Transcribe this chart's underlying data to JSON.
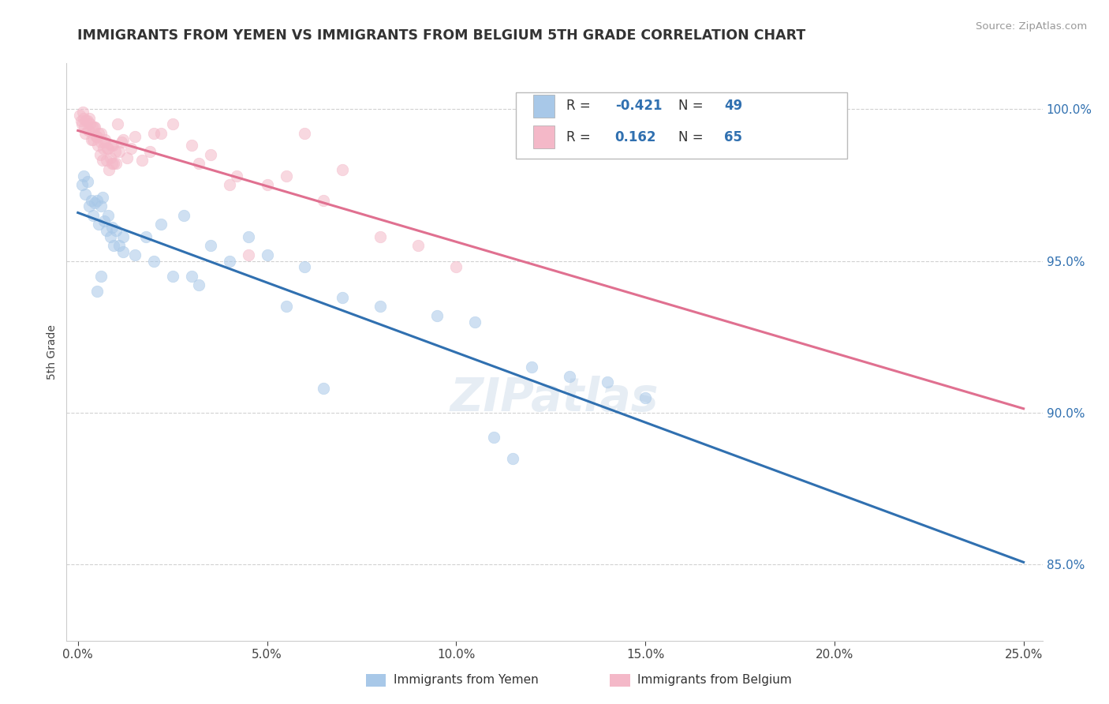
{
  "title": "IMMIGRANTS FROM YEMEN VS IMMIGRANTS FROM BELGIUM 5TH GRADE CORRELATION CHART",
  "source": "Source: ZipAtlas.com",
  "xlabel_vals": [
    0.0,
    5.0,
    10.0,
    15.0,
    20.0,
    25.0
  ],
  "yticks": [
    85.0,
    90.0,
    95.0,
    100.0
  ],
  "ylim": [
    82.5,
    101.5
  ],
  "xlim": [
    -0.3,
    25.5
  ],
  "ylabel_label": "5th Grade",
  "legend_blue_R": "-0.421",
  "legend_blue_N": "49",
  "legend_pink_R": "0.162",
  "legend_pink_N": "65",
  "blue_color": "#a8c8e8",
  "pink_color": "#f4b8c8",
  "blue_line_color": "#3070b0",
  "pink_line_color": "#e07090",
  "yemen_x": [
    0.1,
    0.15,
    0.2,
    0.25,
    0.3,
    0.35,
    0.4,
    0.45,
    0.5,
    0.55,
    0.6,
    0.65,
    0.7,
    0.75,
    0.8,
    0.85,
    0.9,
    0.95,
    1.0,
    1.1,
    1.2,
    1.5,
    1.8,
    2.0,
    2.2,
    2.5,
    3.0,
    3.5,
    4.0,
    4.5,
    5.0,
    5.5,
    6.0,
    6.5,
    7.0,
    8.0,
    9.5,
    10.5,
    11.5,
    12.0,
    13.0,
    14.0,
    15.0,
    0.5,
    0.6,
    1.2,
    2.8,
    3.2,
    11.0
  ],
  "yemen_y": [
    97.5,
    97.8,
    97.2,
    97.6,
    96.8,
    97.0,
    96.5,
    96.9,
    97.0,
    96.2,
    96.8,
    97.1,
    96.3,
    96.0,
    96.5,
    95.8,
    96.1,
    95.5,
    96.0,
    95.5,
    95.8,
    95.2,
    95.8,
    95.0,
    96.2,
    94.5,
    94.5,
    95.5,
    95.0,
    95.8,
    95.2,
    93.5,
    94.8,
    90.8,
    93.8,
    93.5,
    93.2,
    93.0,
    88.5,
    91.5,
    91.2,
    91.0,
    90.5,
    94.0,
    94.5,
    95.3,
    96.5,
    94.2,
    89.2
  ],
  "belgium_x": [
    0.05,
    0.08,
    0.1,
    0.12,
    0.15,
    0.18,
    0.2,
    0.22,
    0.25,
    0.28,
    0.3,
    0.32,
    0.35,
    0.38,
    0.4,
    0.42,
    0.45,
    0.48,
    0.5,
    0.52,
    0.55,
    0.58,
    0.6,
    0.62,
    0.65,
    0.68,
    0.7,
    0.72,
    0.75,
    0.78,
    0.8,
    0.82,
    0.85,
    0.88,
    0.9,
    0.92,
    0.95,
    0.98,
    1.0,
    1.05,
    1.1,
    1.15,
    1.2,
    1.3,
    1.4,
    1.5,
    1.7,
    1.9,
    2.0,
    2.2,
    2.5,
    3.0,
    3.5,
    4.0,
    4.5,
    5.5,
    6.0,
    7.0,
    3.2,
    4.2,
    5.0,
    6.5,
    8.0,
    9.0,
    10.0
  ],
  "belgium_y": [
    99.8,
    99.6,
    99.5,
    99.9,
    99.7,
    99.4,
    99.2,
    99.6,
    99.6,
    99.3,
    99.7,
    99.5,
    99.0,
    99.4,
    99.0,
    99.4,
    99.4,
    99.1,
    99.1,
    98.8,
    99.2,
    98.5,
    99.2,
    98.9,
    98.3,
    98.7,
    98.9,
    99.0,
    98.3,
    98.7,
    98.7,
    98.0,
    98.4,
    98.8,
    98.2,
    98.8,
    98.2,
    98.6,
    98.2,
    99.5,
    98.6,
    98.9,
    99.0,
    98.4,
    98.7,
    99.1,
    98.3,
    98.6,
    99.2,
    99.2,
    99.5,
    98.8,
    98.5,
    97.5,
    95.2,
    97.8,
    99.2,
    98.0,
    98.2,
    97.8,
    97.5,
    97.0,
    95.8,
    95.5,
    94.8
  ]
}
